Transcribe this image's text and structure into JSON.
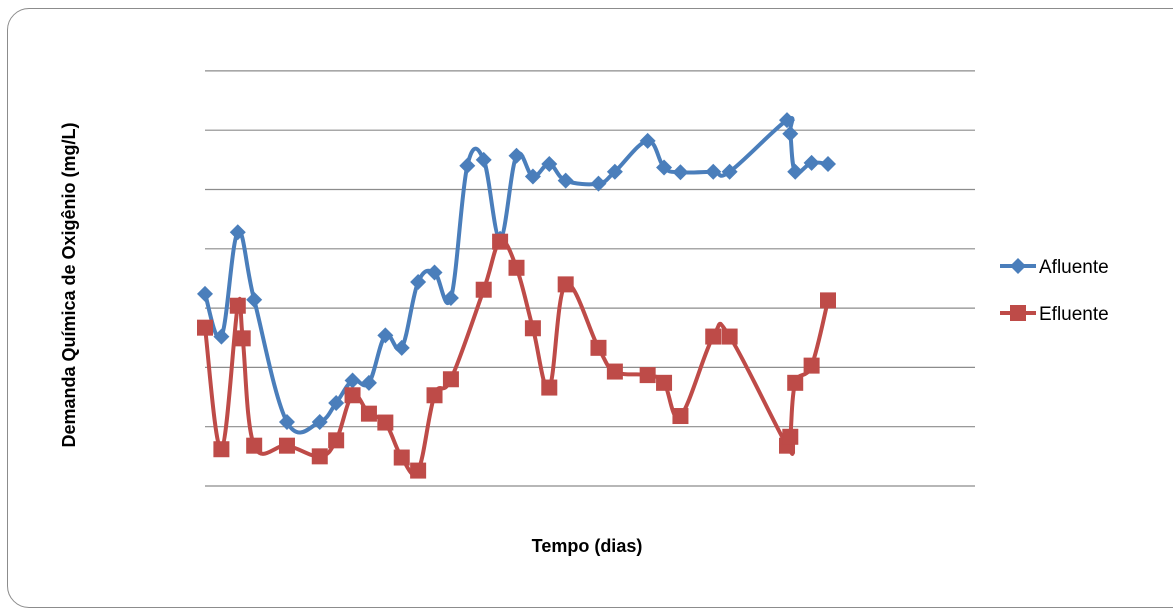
{
  "chart_data": {
    "type": "line",
    "title": "",
    "xlabel": "Tempo (dias)",
    "ylabel": "Demanda Química de Oxigênio (mg/L)",
    "grid": true,
    "legend_position": "right",
    "x_ticks_shown": false,
    "y_ticks_shown": false,
    "x_note": "x values are approximate sample day indices (no tick labels printed)",
    "y_note": "y values are relative gridline levels (0-7), no tick labels printed",
    "ylim": [
      0,
      7
    ],
    "xlim": [
      0,
      77
    ],
    "series": [
      {
        "name": "Afluente",
        "color": "#4a7ebb",
        "marker": "diamond",
        "x": [
          0,
          2,
          4,
          6,
          10,
          14,
          16,
          18,
          20,
          22,
          24,
          26,
          28,
          30,
          32,
          34,
          36,
          38,
          40,
          42,
          44,
          48,
          50,
          54,
          56,
          58,
          62,
          64,
          71,
          71.4,
          72,
          74,
          76
        ],
        "y": [
          3.24,
          2.52,
          4.28,
          3.14,
          1.08,
          1.08,
          1.4,
          1.78,
          1.74,
          2.54,
          2.33,
          3.44,
          3.6,
          3.17,
          5.4,
          5.5,
          4.17,
          5.57,
          5.22,
          5.43,
          5.15,
          5.1,
          5.3,
          5.82,
          5.37,
          5.29,
          5.3,
          5.3,
          6.17,
          5.94,
          5.3,
          5.45,
          5.43
        ]
      },
      {
        "name": "Efluente",
        "color": "#be4b48",
        "marker": "square",
        "x": [
          0,
          2,
          4,
          4.6,
          6,
          10,
          14,
          16,
          18,
          20,
          22,
          24,
          26,
          28,
          30,
          34,
          36,
          38,
          40,
          42,
          44,
          48,
          50,
          54,
          56,
          58,
          62,
          64,
          71,
          71.4,
          72,
          74,
          76
        ],
        "y": [
          2.67,
          0.62,
          3.04,
          2.49,
          0.68,
          0.68,
          0.5,
          0.77,
          1.53,
          1.22,
          1.07,
          0.48,
          0.26,
          1.53,
          1.8,
          3.31,
          4.12,
          3.68,
          2.66,
          1.66,
          3.4,
          2.33,
          1.93,
          1.87,
          1.74,
          1.18,
          2.52,
          2.52,
          0.68,
          0.83,
          1.74,
          2.03,
          3.13
        ]
      }
    ]
  }
}
